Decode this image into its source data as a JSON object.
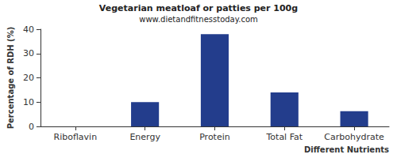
{
  "chart_data": {
    "type": "bar",
    "title": "Vegetarian meatloaf or patties per 100g",
    "subtitle": "www.dietandfitnesstoday.com",
    "x_label": "Different Nutrients",
    "y_label": "Percentage of RDH (%)",
    "categories": [
      "Riboflavin",
      "Energy",
      "Protein",
      "Total Fat",
      "Carbohydrate"
    ],
    "values": [
      0,
      10,
      38,
      14,
      6.3
    ],
    "color": "#233d8c",
    "ylim": [
      0,
      40
    ],
    "yticks": [
      0,
      10,
      20,
      30,
      40
    ],
    "grid": false
  }
}
